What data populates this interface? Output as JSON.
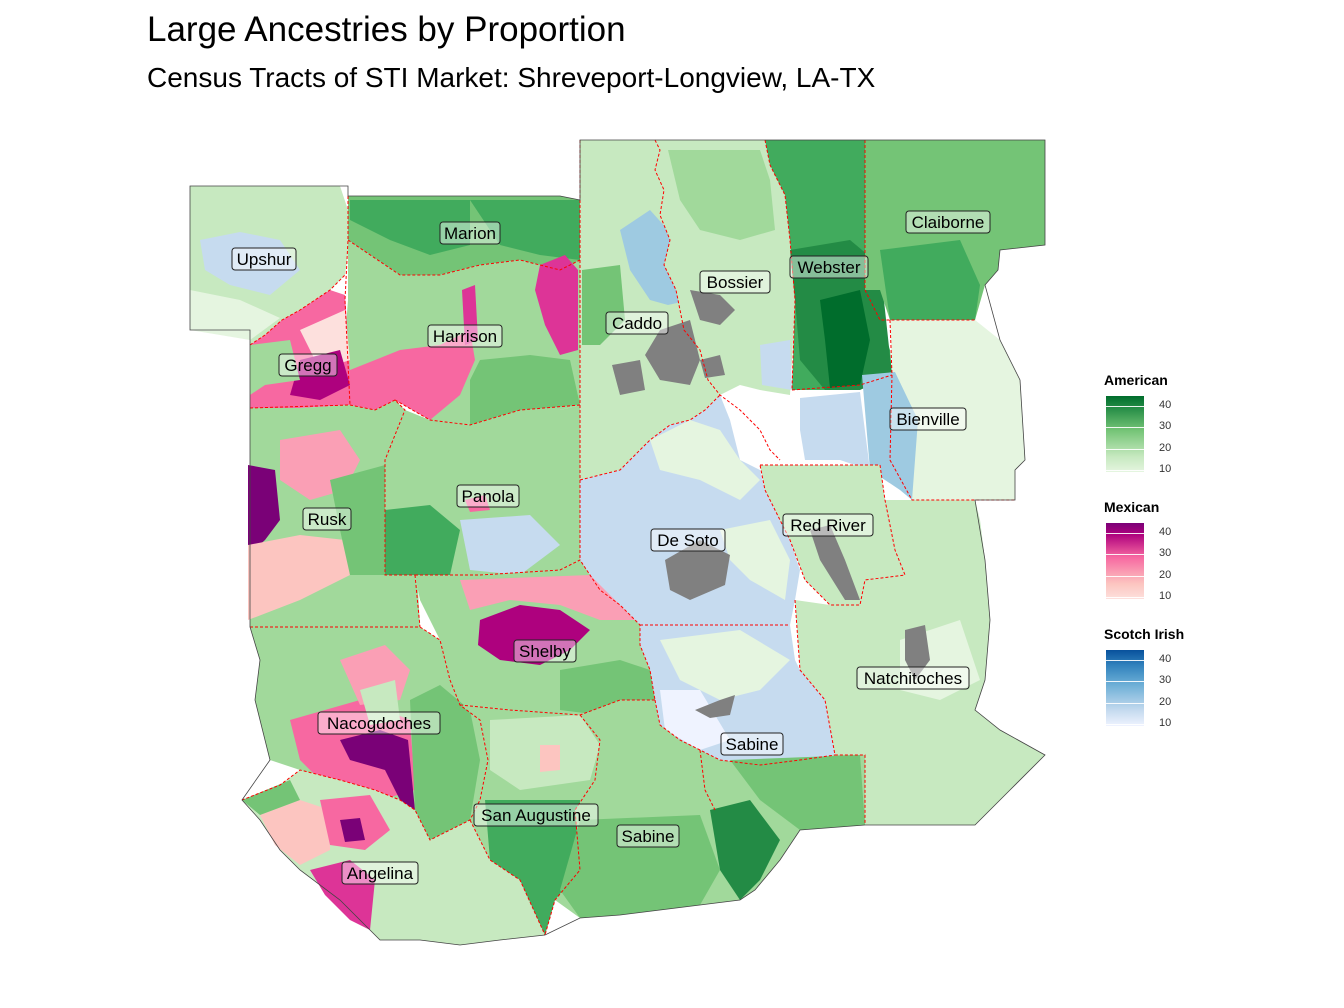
{
  "title": "Large Ancestries by Proportion",
  "subtitle": "Census Tracts of STI Market: Shreveport-Longview, LA-TX",
  "colors": {
    "american": [
      "#e5f5e0",
      "#c7e9c0",
      "#a1d99b",
      "#74c476",
      "#41ab5d",
      "#238b45",
      "#006d2c"
    ],
    "mexican": [
      "#fde0dd",
      "#fcc5c0",
      "#fa9fb5",
      "#f768a1",
      "#dd3497",
      "#ae017e",
      "#7a0177"
    ],
    "scotch_irish": [
      "#eff3ff",
      "#c6dbef",
      "#9ecae1",
      "#6baed6",
      "#3182bd",
      "#08519c"
    ],
    "missing": "#808080",
    "border": "#ff0000"
  },
  "counties": [
    {
      "name": "Upshur"
    },
    {
      "name": "Marion"
    },
    {
      "name": "Harrison"
    },
    {
      "name": "Gregg"
    },
    {
      "name": "Rusk"
    },
    {
      "name": "Panola"
    },
    {
      "name": "Shelby"
    },
    {
      "name": "Nacogdoches"
    },
    {
      "name": "San Augustine"
    },
    {
      "name": "Sabine"
    },
    {
      "name": "Angelina"
    },
    {
      "name": "Caddo"
    },
    {
      "name": "Bossier"
    },
    {
      "name": "Webster"
    },
    {
      "name": "Claiborne"
    },
    {
      "name": "Bienville"
    },
    {
      "name": "De Soto"
    },
    {
      "name": "Red River"
    },
    {
      "name": "Natchitoches"
    },
    {
      "name": "Sabine"
    }
  ],
  "legends": [
    {
      "title": "American",
      "ticks": [
        "40",
        "30",
        "20",
        "10"
      ]
    },
    {
      "title": "Mexican",
      "ticks": [
        "40",
        "30",
        "20",
        "10"
      ]
    },
    {
      "title": "Scotch Irish",
      "ticks": [
        "40",
        "30",
        "20",
        "10"
      ]
    }
  ]
}
